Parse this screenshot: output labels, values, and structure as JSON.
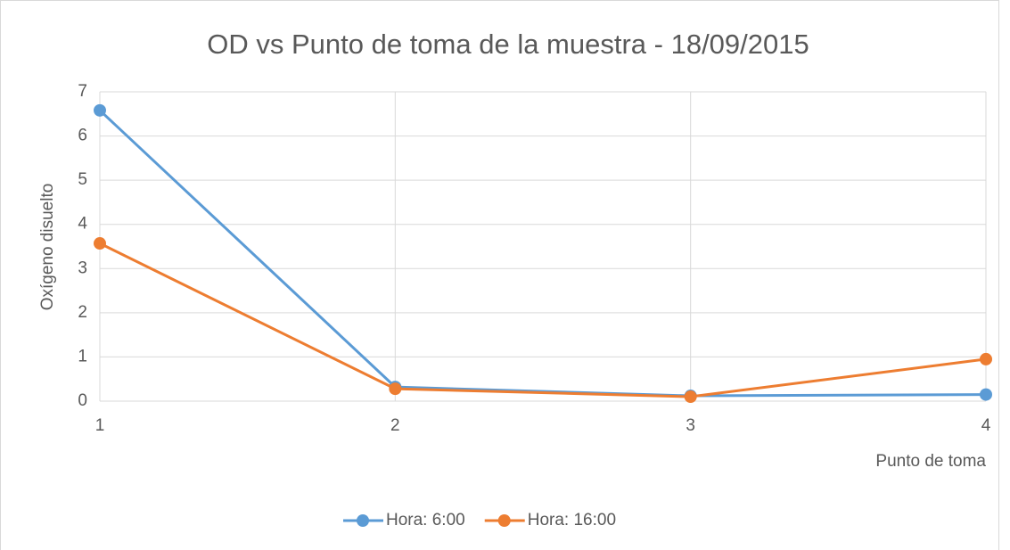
{
  "chart_data": {
    "type": "line",
    "title": "OD vs Punto de toma de la muestra - 18/09/2015",
    "x_label": "Punto de toma",
    "y_label": "Oxígeno disuelto",
    "x": [
      1,
      2,
      3,
      4
    ],
    "series": [
      {
        "name": "Hora: 6:00",
        "color": "#5b9bd5",
        "values": [
          6.58,
          0.32,
          0.12,
          0.15
        ]
      },
      {
        "name": "Hora: 16:00",
        "color": "#ed7d31",
        "values": [
          3.57,
          0.28,
          0.1,
          0.95
        ]
      }
    ],
    "xlim": [
      1,
      4
    ],
    "xticks": [
      1,
      2,
      3,
      4
    ],
    "ylim": [
      0,
      7
    ],
    "yticks": [
      0,
      1,
      2,
      3,
      4,
      5,
      6,
      7
    ],
    "grid": true,
    "legend": "bottom"
  }
}
